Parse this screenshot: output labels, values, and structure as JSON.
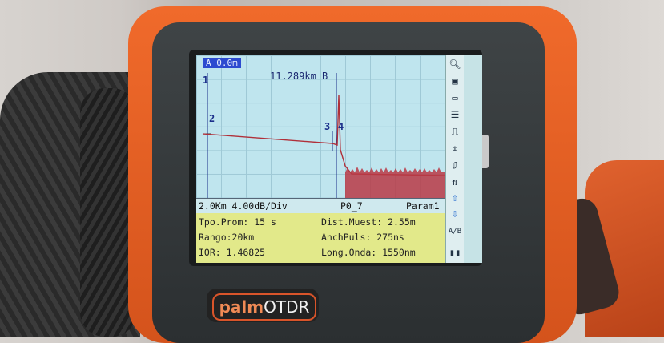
{
  "device": {
    "brand_name": "palm",
    "brand_product": "OTDR"
  },
  "trace": {
    "cursor_readout": "A 0.0m",
    "marker_1": "1",
    "marker_2": "2",
    "marker_3": "3",
    "marker_4": "4",
    "distance_b": "11.289km B"
  },
  "status_bar": {
    "scale": "2.0Km 4.00dB/Div",
    "preset": "P0_7",
    "param": "Param1"
  },
  "info_panel": {
    "avg_time": "Tpo.Prom: 15 s",
    "range": "Rango:20km",
    "ior": "IOR: 1.46825",
    "sample_dist": "Dist.Muest: 2.55m",
    "pulse_width": "AnchPuls: 275ns",
    "wavelength": "Long.Onda: 1550nm"
  },
  "toolbar_icons": [
    "zoom-icon",
    "save-icon",
    "open-folder-icon",
    "file-icon",
    "trace-icon",
    "split-icon",
    "pulse-icon",
    "marker-move-icon",
    "arrow-up-icon",
    "arrow-down-icon",
    "ab-toggle-icon",
    "battery-icon"
  ],
  "toolbar_labels": {
    "ab": "A/B"
  }
}
